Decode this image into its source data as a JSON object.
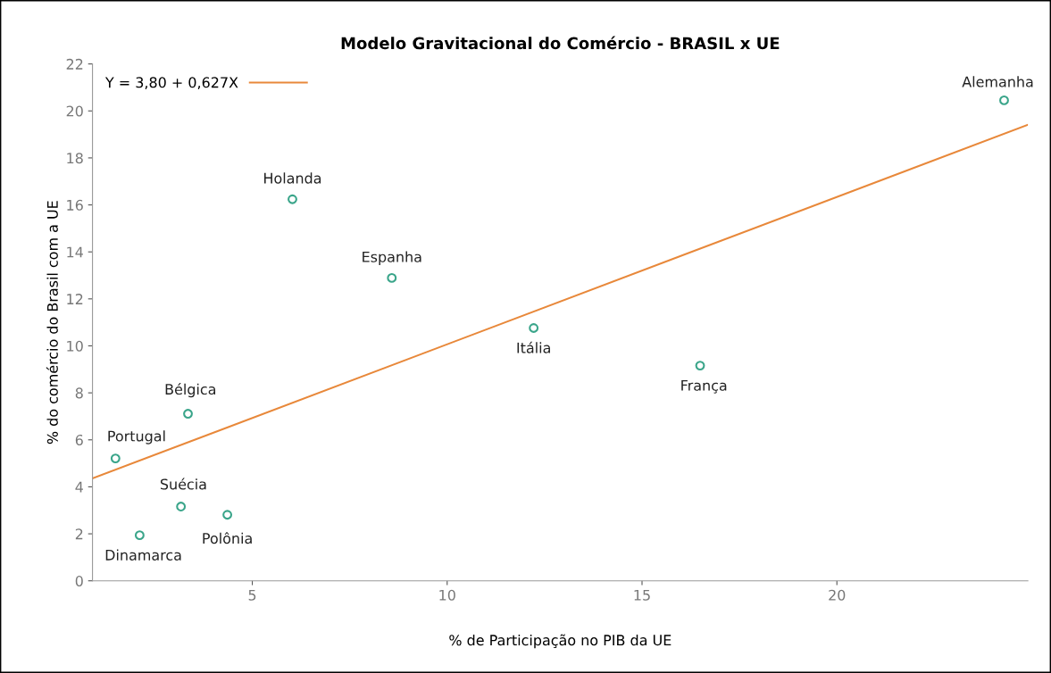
{
  "chart_data": {
    "type": "scatter",
    "title": "Modelo Gravitacional do Comércio - BRASIL x UE",
    "xlabel": "% de Participação no PIB da UE",
    "ylabel": "% do comércio do Brasil com a UE",
    "x": [
      24.29,
      6.03,
      8.58,
      12.22,
      16.49,
      3.35,
      1.49,
      3.17,
      4.36,
      2.11
    ],
    "series": [
      {
        "color": "#3aa58a",
        "marker": "circle",
        "values": [
          20.45,
          16.24,
          12.89,
          10.76,
          9.16,
          7.11,
          5.21,
          3.16,
          2.81,
          1.94
        ]
      },
      {
        "type": "line",
        "name": "Y = 3,80 + 0,627X",
        "color": "#e8883a",
        "marker": "none",
        "x": [
          0.9,
          24.9
        ],
        "values": [
          4.36,
          19.41
        ]
      }
    ],
    "annotations": [
      {
        "text": "Alemanha",
        "x": 24.29,
        "y": 20.45
      },
      {
        "text": "Holanda",
        "x": 6.03,
        "y": 16.24
      },
      {
        "text": "Espanha",
        "x": 8.58,
        "y": 12.89
      },
      {
        "text": "Itália",
        "x": 12.22,
        "y": 10.76
      },
      {
        "text": "França",
        "x": 16.49,
        "y": 9.16
      },
      {
        "text": "Bélgica",
        "x": 3.35,
        "y": 7.11
      },
      {
        "text": "Portugal",
        "x": 1.49,
        "y": 5.21
      },
      {
        "text": "Suécia",
        "x": 3.17,
        "y": 3.16
      },
      {
        "text": "Polônia",
        "x": 4.36,
        "y": 2.81
      },
      {
        "text": "Dinamarca",
        "x": 2.11,
        "y": 1.94
      }
    ],
    "xlim": [
      0.9,
      24.9
    ],
    "xticks": [
      5,
      10,
      15,
      20
    ],
    "ylim": [
      0,
      22
    ],
    "yticks": [
      0,
      2,
      4,
      6,
      8,
      10,
      12,
      14,
      16,
      18,
      20,
      22
    ],
    "grid": false,
    "legend": "top left"
  }
}
